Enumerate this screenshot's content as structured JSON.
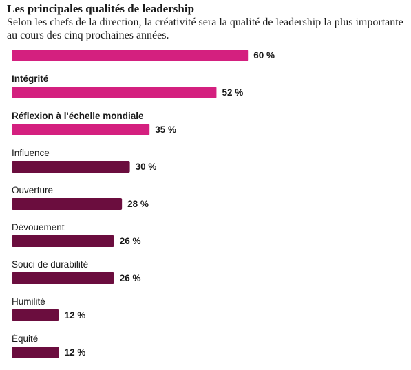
{
  "chart_data": {
    "type": "bar",
    "orientation": "horizontal",
    "title": "Les principales qualités de leadership",
    "subtitle": "Selon les chefs de la direction, la créativité sera la qualité de leadership la plus importante au cours des cinq prochaines années.",
    "categories": [
      "",
      "Intégrité",
      "Réflexion à l'échelle mondiale",
      "Influence",
      "Ouverture",
      "Dévouement",
      "Souci de durabilité",
      "Humilité",
      "Équité"
    ],
    "values": [
      60,
      52,
      35,
      30,
      28,
      26,
      26,
      12,
      12
    ],
    "value_labels": [
      "60 %",
      "52 %",
      "35 %",
      "30 %",
      "28 %",
      "26 %",
      "26 %",
      "12 %",
      "12 %"
    ],
    "highlighted": [
      true,
      true,
      true,
      false,
      false,
      false,
      false,
      false,
      false
    ],
    "colors": {
      "highlight": "#d4207f",
      "normal": "#6b0d3e"
    },
    "xlim": [
      0,
      100
    ],
    "grid": false,
    "legend": "none"
  }
}
